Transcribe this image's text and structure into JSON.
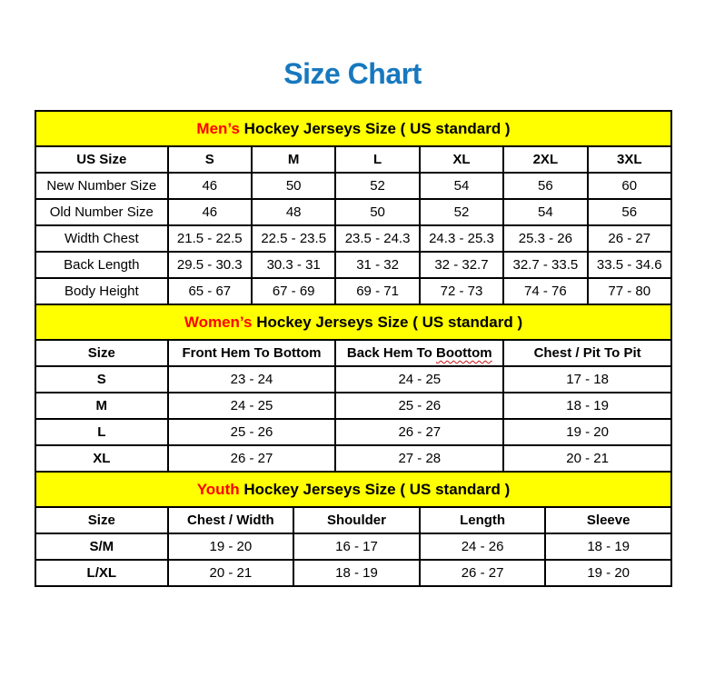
{
  "page_title": "Size Chart",
  "colors": {
    "title_blue": "#1778be",
    "band_yellow": "#ffff00",
    "highlight_red": "#ff0000",
    "squiggle_red": "#cc1111",
    "border_black": "#000000"
  },
  "chart_data": [
    {
      "type": "table",
      "section": "mens",
      "title_parts": {
        "highlight": "Men’s",
        "rest": " Hockey Jerseys Size ( US standard )"
      },
      "columns": [
        {
          "label": "US Size"
        },
        {
          "label": "S"
        },
        {
          "label": "M"
        },
        {
          "label": "L"
        },
        {
          "label": "XL"
        },
        {
          "label": "2XL"
        },
        {
          "label": "3XL"
        }
      ],
      "rows": [
        {
          "label": "New Number Size",
          "values": [
            "46",
            "50",
            "52",
            "54",
            "56",
            "60"
          ]
        },
        {
          "label": "Old Number Size",
          "values": [
            "46",
            "48",
            "50",
            "52",
            "54",
            "56"
          ]
        },
        {
          "label": "Width Chest",
          "values": [
            "21.5 - 22.5",
            "22.5 - 23.5",
            "23.5 - 24.3",
            "24.3 - 25.3",
            "25.3 - 26",
            "26 - 27"
          ]
        },
        {
          "label": "Back Length",
          "values": [
            "29.5 - 30.3",
            "30.3 - 31",
            "31 - 32",
            "32 - 32.7",
            "32.7 - 33.5",
            "33.5 - 34.6"
          ]
        },
        {
          "label": "Body Height",
          "values": [
            "65 - 67",
            "67 - 69",
            "69 - 71",
            "72 - 73",
            "74 - 76",
            "77 - 80"
          ]
        }
      ]
    },
    {
      "type": "table",
      "section": "womens",
      "title_parts": {
        "highlight": "Women’s",
        "rest": " Hockey Jerseys Size ( US standard )"
      },
      "columns": [
        {
          "label": "Size"
        },
        {
          "label": "Front Hem To Bottom"
        },
        {
          "label": "Back Hem To ",
          "wavy": "Boottom"
        },
        {
          "label": "Chest / Pit To Pit"
        }
      ],
      "rows": [
        {
          "label": "S",
          "values": [
            "23 - 24",
            "24 - 25",
            "17 - 18"
          ]
        },
        {
          "label": "M",
          "values": [
            "24 - 25",
            "25 - 26",
            "18 - 19"
          ]
        },
        {
          "label": "L",
          "values": [
            "25 - 26",
            "26 - 27",
            "19 - 20"
          ]
        },
        {
          "label": "XL",
          "values": [
            "26 - 27",
            "27 - 28",
            "20 - 21"
          ]
        }
      ]
    },
    {
      "type": "table",
      "section": "youth",
      "title_parts": {
        "highlight": "Youth",
        "rest": " Hockey Jerseys Size ( US standard )"
      },
      "columns": [
        {
          "label": "Size"
        },
        {
          "label": "Chest / Width"
        },
        {
          "label": "Shoulder"
        },
        {
          "label": "Length"
        },
        {
          "label": "Sleeve"
        }
      ],
      "rows": [
        {
          "label": "S/M",
          "values": [
            "19 - 20",
            "16 - 17",
            "24 - 26",
            "18 - 19"
          ]
        },
        {
          "label": "L/XL",
          "values": [
            "20 - 21",
            "18 - 19",
            "26 - 27",
            "19 - 20"
          ]
        }
      ]
    }
  ]
}
